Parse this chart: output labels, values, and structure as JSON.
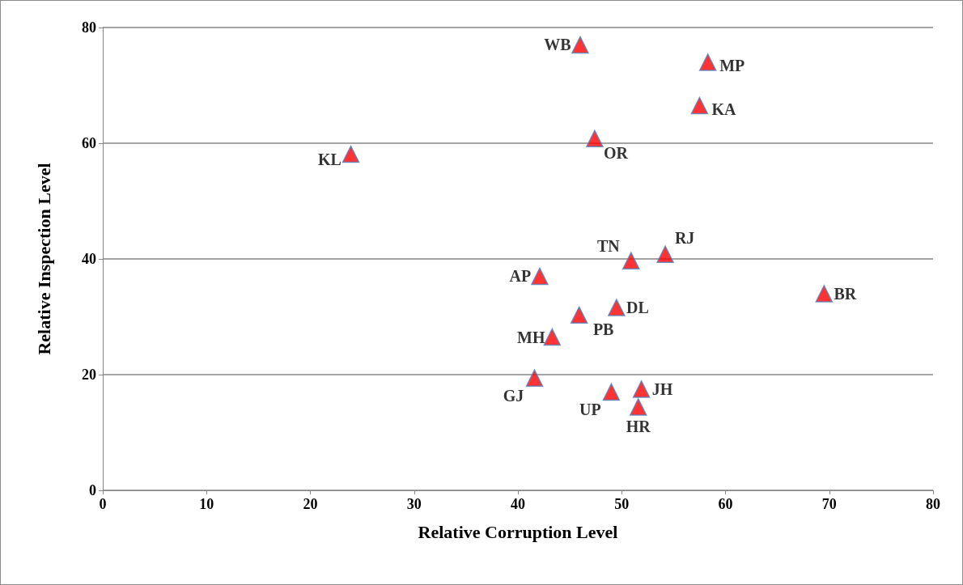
{
  "chart_data": {
    "type": "scatter",
    "xlabel": "Relative Corruption Level",
    "ylabel": "Relative Inspection Level",
    "xlim": [
      0,
      80
    ],
    "xticks": [
      0,
      10,
      20,
      30,
      40,
      50,
      60,
      70,
      80
    ],
    "ylim": [
      0,
      80
    ],
    "yticks": [
      0,
      20,
      40,
      60,
      80
    ],
    "grid": "y",
    "marker": "triangle",
    "series": [
      {
        "color": "#ff0000",
        "x": [
          46.0,
          58.3,
          57.5,
          47.4,
          23.9,
          50.9,
          54.2,
          42.1,
          69.5,
          49.5,
          45.9,
          43.3,
          41.6,
          49.0,
          51.9,
          51.6
        ],
        "values": [
          77.0,
          74.0,
          66.5,
          60.8,
          58.1,
          39.7,
          40.8,
          37.0,
          34.0,
          31.6,
          30.3,
          26.5,
          19.4,
          17.0,
          17.5,
          14.4
        ],
        "value_labels": [
          "WB",
          "MP",
          "KA",
          "OR",
          "KL",
          "TN",
          "RJ",
          "AP",
          "BR",
          "DL",
          "PB",
          "MH",
          "GJ",
          "UP",
          "JH",
          "HR"
        ]
      }
    ]
  }
}
